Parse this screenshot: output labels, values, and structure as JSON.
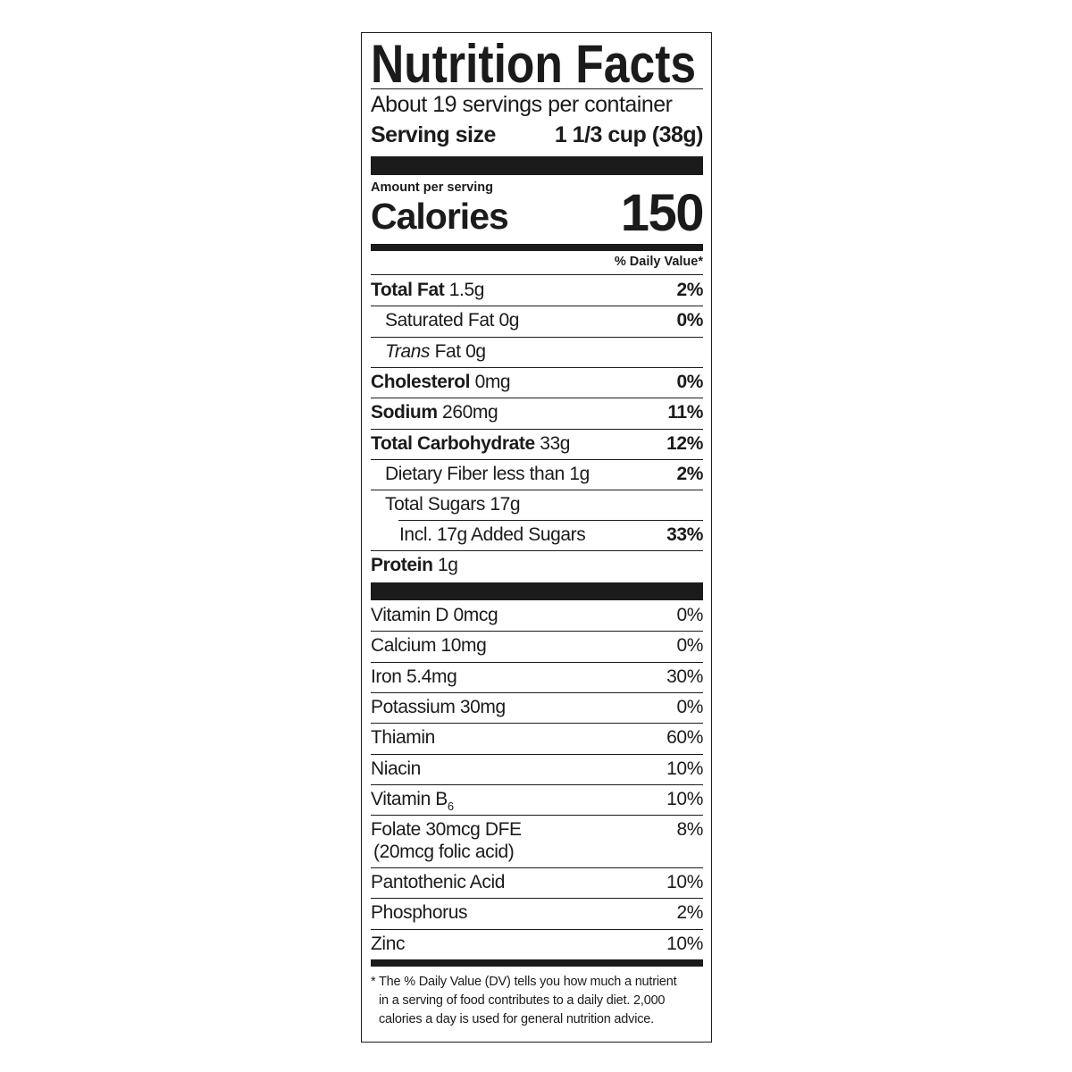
{
  "title": "Nutrition Facts",
  "servings_per_container": "About 19 servings per container",
  "serving_size_label": "Serving size",
  "serving_size_value": "1 1/3 cup (38g)",
  "amount_per_serving": "Amount per serving",
  "calories_label": "Calories",
  "calories_value": "150",
  "daily_value_header": "% Daily Value*",
  "nutrients": [
    {
      "name": "Total Fat",
      "amount": "1.5g",
      "dv": "2%",
      "bold": true,
      "indent": 0
    },
    {
      "name": "Saturated Fat",
      "amount": "0g",
      "dv": "0%",
      "bold": false,
      "indent": 1
    },
    {
      "name_italic": "Trans",
      "name": "Fat",
      "amount": "0g",
      "dv": "",
      "bold": false,
      "indent": 1
    },
    {
      "name": "Cholesterol",
      "amount": "0mg",
      "dv": "0%",
      "bold": true,
      "indent": 0
    },
    {
      "name": "Sodium",
      "amount": "260mg",
      "dv": "11%",
      "bold": true,
      "indent": 0
    },
    {
      "name": "Total Carbohydrate",
      "amount": "33g",
      "dv": "12%",
      "bold": true,
      "indent": 0
    },
    {
      "name": "Dietary Fiber",
      "amount": "less than 1g",
      "dv": "2%",
      "bold": false,
      "indent": 1
    },
    {
      "name": "Total Sugars",
      "amount": "17g",
      "dv": "",
      "bold": false,
      "indent": 1
    },
    {
      "name": "Incl. 17g Added Sugars",
      "amount": "",
      "dv": "33%",
      "bold": false,
      "indent": 2
    },
    {
      "name": "Protein",
      "amount": "1g",
      "dv": "",
      "bold": true,
      "indent": 0
    }
  ],
  "vitamins": [
    {
      "name": "Vitamin D 0mcg",
      "dv": "0%"
    },
    {
      "name": "Calcium 10mg",
      "dv": "0%"
    },
    {
      "name": "Iron 5.4mg",
      "dv": "30%"
    },
    {
      "name": "Potassium 30mg",
      "dv": "0%"
    },
    {
      "name": "Thiamin",
      "dv": "60%"
    },
    {
      "name": "Niacin",
      "dv": "10%"
    },
    {
      "name": "Vitamin B",
      "sub": "6",
      "dv": "10%"
    },
    {
      "name": "Folate 30mcg DFE",
      "second_line": "(20mcg folic acid)",
      "dv": "8%"
    },
    {
      "name": "Pantothenic Acid",
      "dv": "10%"
    },
    {
      "name": "Phosphorus",
      "dv": "2%"
    },
    {
      "name": "Zinc",
      "dv": "10%"
    }
  ],
  "footnote": [
    "* The % Daily Value (DV) tells you how much a nutrient",
    "in a serving of food contributes to a daily diet. 2,000",
    "calories a day is used for general nutrition advice."
  ]
}
